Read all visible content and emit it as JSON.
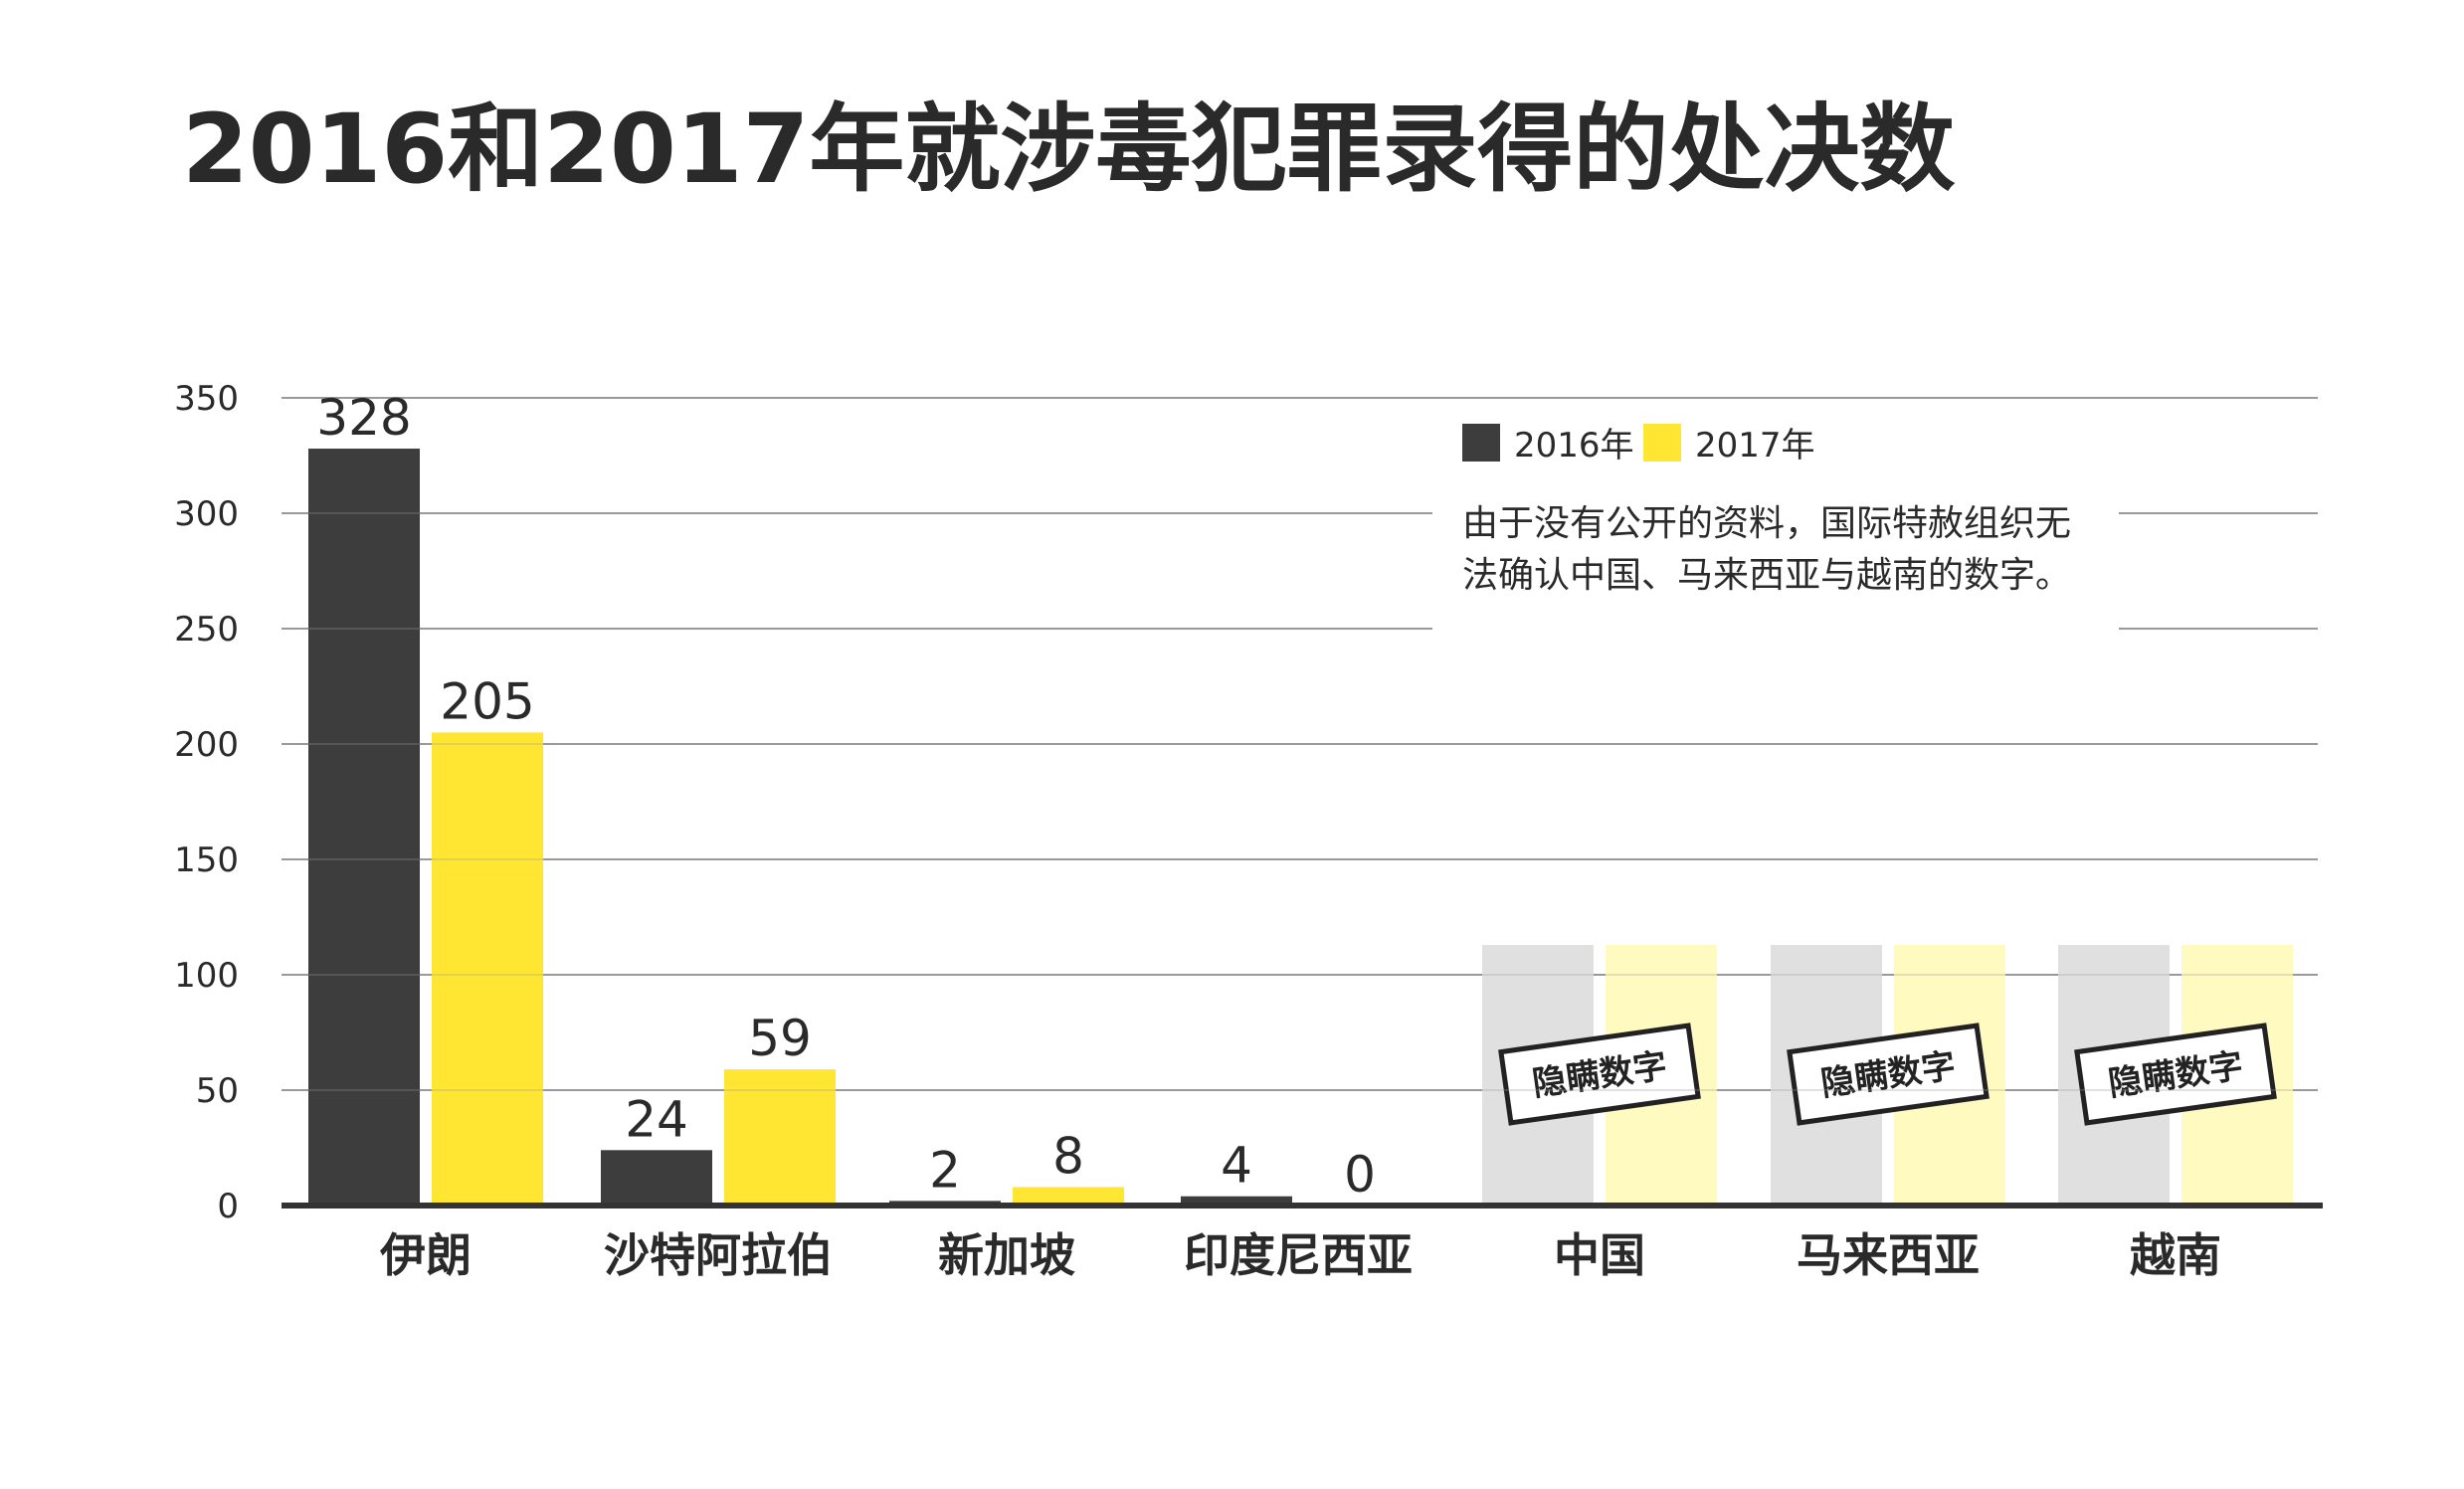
{
  "title": "2016和2017年就涉毒犯罪录得的处决数",
  "colors": {
    "series_2016": "#3d3d3d",
    "series_2017": "#ffe633",
    "hidden_2016": "#e0e0e0",
    "hidden_2017": "#fffac0",
    "gridline": "#9a9a9a",
    "baseline": "#333333",
    "text": "#2a2a2a"
  },
  "chart_data": {
    "type": "bar",
    "title": "2016和2017年就涉毒犯罪录得的处决数",
    "xlabel": "",
    "ylabel": "",
    "ylim": [
      0,
      350
    ],
    "yticks": [
      0,
      50,
      100,
      150,
      200,
      250,
      300,
      350
    ],
    "grid": true,
    "legend_position": "top-right",
    "categories": [
      "伊朗",
      "沙特阿拉伯",
      "新加坡",
      "印度尼西亚",
      "中国",
      "马来西亚",
      "越南"
    ],
    "series": [
      {
        "name": "2016年",
        "values": [
          328,
          24,
          2,
          4,
          null,
          null,
          null
        ]
      },
      {
        "name": "2017年",
        "values": [
          205,
          59,
          8,
          0,
          null,
          null,
          null
        ]
      }
    ],
    "data_labels": [
      [
        "328",
        "24",
        "2",
        "4",
        "",
        "",
        ""
      ],
      [
        "205",
        "59",
        "8",
        "0",
        "",
        "",
        ""
      ]
    ],
    "hidden_categories": [
      "中国",
      "马来西亚",
      "越南"
    ],
    "hidden_stamp_text": "隐瞒数字",
    "note": "由于没有公开的资料，国际特赦组织无法确认中国、马来西亚与越南的数字。",
    "note_lines": [
      "由于没有公开的资料，国际特赦组织无",
      "法确认中国、马来西亚与越南的数字。"
    ]
  }
}
